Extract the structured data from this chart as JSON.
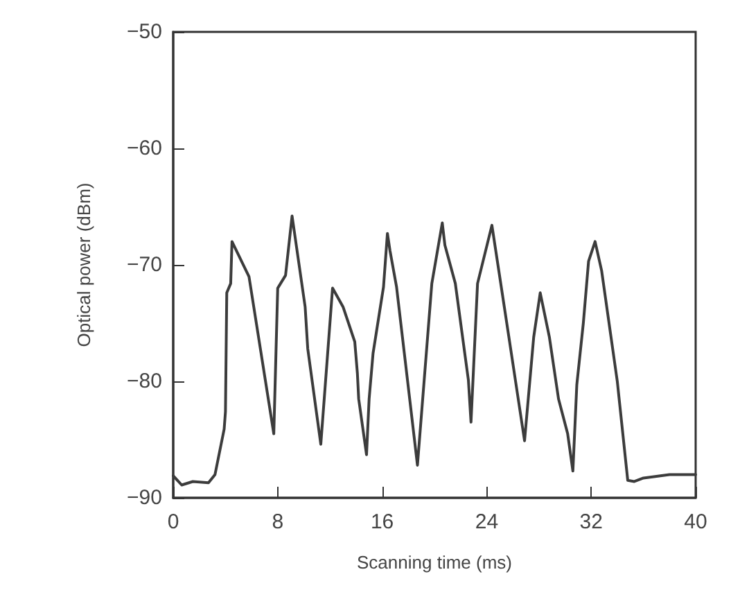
{
  "chart_data": {
    "type": "line",
    "xlabel": "Scanning time (ms)",
    "ylabel": "Optical power (dBm)",
    "xlim": [
      0,
      40
    ],
    "xticks": [
      0,
      8,
      16,
      24,
      32,
      40
    ],
    "ylim": [
      -90,
      -50
    ],
    "yticks": [
      -90,
      -80,
      -70,
      -60,
      -50
    ],
    "grid": false,
    "marker": "none",
    "line_style": "solid",
    "series": [
      {
        "color": "#3c3c3c",
        "x": [
          0,
          0.65,
          1.5,
          2.7,
          3.2,
          3.9,
          4.0,
          4.1,
          4.4,
          4.5,
          5.8,
          7.7,
          8.0,
          8.6,
          9.1,
          10.1,
          10.3,
          11.3,
          12.2,
          13.0,
          13.9,
          14.1,
          14.2,
          14.8,
          15.0,
          15.3,
          16.1,
          16.4,
          16.6,
          17.1,
          18.7,
          19.8,
          20.6,
          20.8,
          21.6,
          22.6,
          22.8,
          23.3,
          24.4,
          25.7,
          26.9,
          27.6,
          28.1,
          28.8,
          29.5,
          30.2,
          30.6,
          30.9,
          31.4,
          31.8,
          32.3,
          32.8,
          34.0,
          34.8,
          35.3,
          36,
          38,
          40
        ],
        "values": [
          -88.1,
          -88.9,
          -88.6,
          -88.7,
          -88.0,
          -84.1,
          -82.6,
          -72.4,
          -71.6,
          -68.0,
          -71.0,
          -84.5,
          -72.0,
          -70.9,
          -65.8,
          -73.6,
          -77.2,
          -85.4,
          -72.0,
          -73.6,
          -76.6,
          -79.3,
          -81.5,
          -86.3,
          -81.5,
          -77.6,
          -71.9,
          -67.3,
          -68.8,
          -71.9,
          -87.2,
          -71.6,
          -66.4,
          -68.3,
          -71.6,
          -79.9,
          -83.5,
          -71.6,
          -66.6,
          -76.2,
          -85.1,
          -76.2,
          -72.4,
          -76.2,
          -81.5,
          -84.5,
          -87.7,
          -80.3,
          -75.0,
          -69.7,
          -68.0,
          -70.5,
          -80.0,
          -88.5,
          -88.6,
          -88.3,
          -88.0,
          -88.0
        ]
      }
    ]
  }
}
